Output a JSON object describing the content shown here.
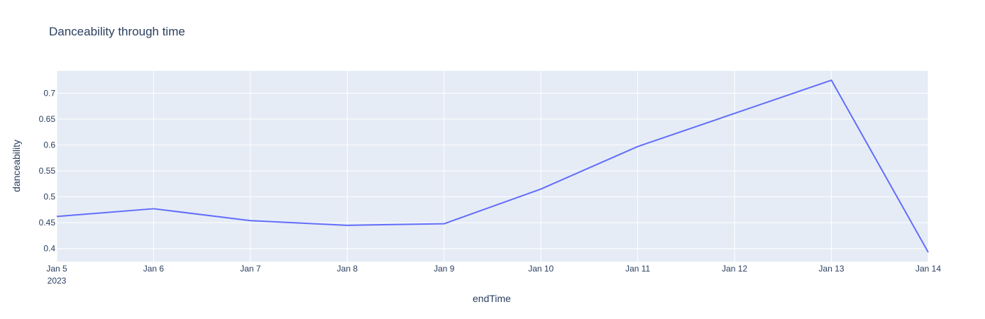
{
  "chart_data": {
    "type": "line",
    "title": "Danceability through time",
    "xlabel": "endTime",
    "ylabel": "danceability",
    "x": [
      "2023-01-05",
      "2023-01-06",
      "2023-01-07",
      "2023-01-08",
      "2023-01-09",
      "2023-01-10",
      "2023-01-11",
      "2023-01-12",
      "2023-01-13",
      "2023-01-14"
    ],
    "x_tick_labels": [
      "Jan 5",
      "Jan 6",
      "Jan 7",
      "Jan 8",
      "Jan 9",
      "Jan 10",
      "Jan 11",
      "Jan 12",
      "Jan 13",
      "Jan 14"
    ],
    "x_year_label": "2023",
    "series": [
      {
        "values": [
          0.462,
          0.477,
          0.454,
          0.445,
          0.448,
          0.515,
          0.597,
          0.661,
          0.725,
          0.393
        ],
        "color": "#636efa"
      }
    ],
    "xlim": [
      "2023-01-05",
      "2023-01-14"
    ],
    "ylim": [
      0.375,
      0.743
    ],
    "y_ticks": [
      0.4,
      0.45,
      0.5,
      0.55,
      0.6,
      0.65,
      0.7
    ],
    "y_tick_labels": [
      "0.4",
      "0.45",
      "0.5",
      "0.55",
      "0.6",
      "0.65",
      "0.7"
    ],
    "grid": true,
    "plot_background": "#e5ecf6",
    "legend": "none"
  }
}
